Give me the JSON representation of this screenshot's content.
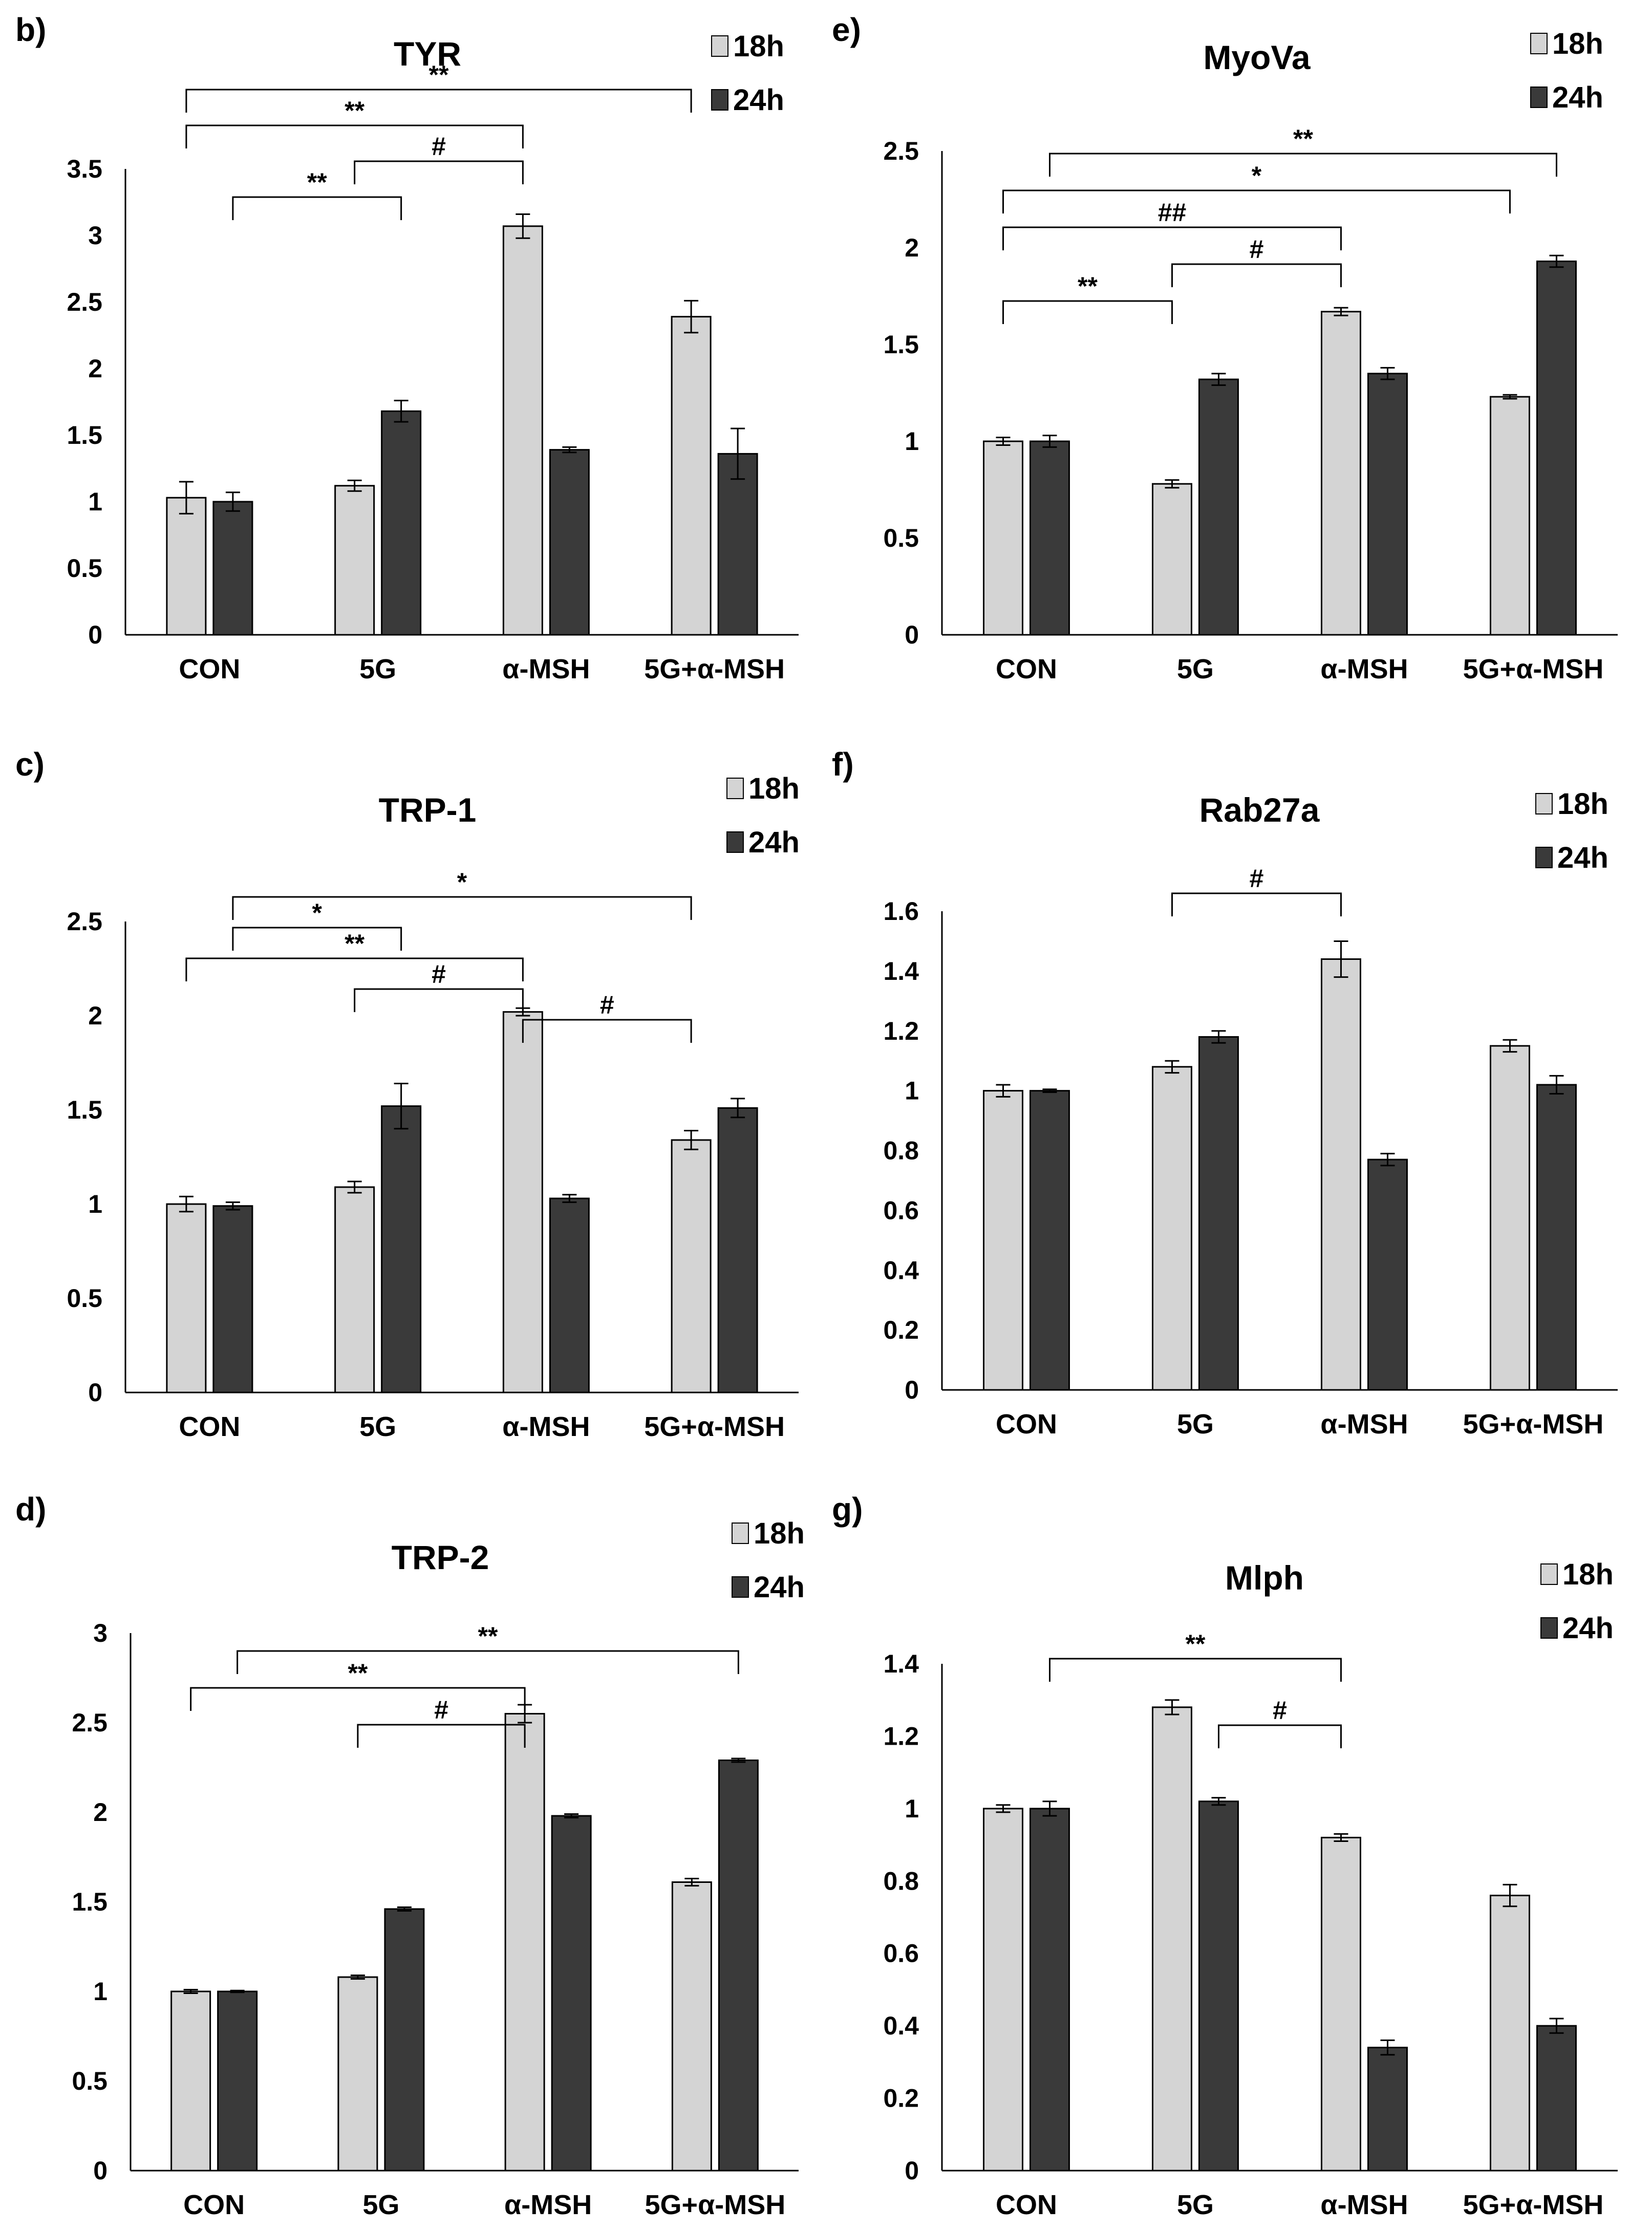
{
  "colors": {
    "series_18h": "#d4d4d4",
    "series_24h": "#3a3a3a",
    "outline": "#000000"
  },
  "chart_data": [
    {
      "panel_label": "b)",
      "title": "TYR",
      "type": "bar",
      "categories": [
        "CON",
        "5G",
        "α-MSH",
        "5G+α-MSH"
      ],
      "ylim": [
        0,
        3.5
      ],
      "ticks": [
        "0",
        "0.5",
        "1",
        "1.5",
        "2",
        "2.5",
        "3",
        "3.5"
      ],
      "legend_position": "top-right",
      "series": [
        {
          "name": "18h",
          "values": [
            1.03,
            1.12,
            3.07,
            2.39
          ],
          "errors": [
            0.12,
            0.04,
            0.09,
            0.12
          ]
        },
        {
          "name": "24h",
          "values": [
            1.0,
            1.68,
            1.39,
            1.36
          ],
          "errors": [
            0.07,
            0.08,
            0.02,
            0.19
          ]
        }
      ],
      "significance": [
        {
          "label": "**",
          "from": [
            0,
            0
          ],
          "to": [
            3,
            0
          ]
        },
        {
          "label": "**",
          "from": [
            0,
            0
          ],
          "to": [
            2,
            0
          ]
        },
        {
          "label": "#",
          "from": [
            1,
            0
          ],
          "to": [
            2,
            0
          ]
        },
        {
          "label": "**",
          "from": [
            0,
            0.5
          ],
          "to": [
            1,
            1
          ]
        }
      ]
    },
    {
      "panel_label": "e)",
      "title": "MyoVa",
      "type": "bar",
      "categories": [
        "CON",
        "5G",
        "α-MSH",
        "5G+α-MSH"
      ],
      "ylim": [
        0,
        2.5
      ],
      "ticks": [
        "0",
        "0.5",
        "1",
        "1.5",
        "2",
        "2.5"
      ],
      "legend_position": "top-right",
      "series": [
        {
          "name": "18h",
          "values": [
            1.0,
            0.78,
            1.67,
            1.23
          ],
          "errors": [
            0.02,
            0.02,
            0.02,
            0.01
          ]
        },
        {
          "name": "24h",
          "values": [
            1.0,
            1.32,
            1.35,
            1.93
          ],
          "errors": [
            0.03,
            0.03,
            0.03,
            0.03
          ]
        }
      ],
      "significance": [
        {
          "label": "**",
          "from": [
            0.5,
            0
          ],
          "to": [
            3,
            1
          ]
        },
        {
          "label": "*",
          "from": [
            0,
            0
          ],
          "to": [
            3,
            0
          ]
        },
        {
          "label": "##",
          "from": [
            0,
            0
          ],
          "to": [
            2,
            0
          ]
        },
        {
          "label": "#",
          "from": [
            1,
            0
          ],
          "to": [
            2,
            0
          ]
        },
        {
          "label": "**",
          "from": [
            0,
            0
          ],
          "to": [
            1,
            0
          ]
        }
      ]
    },
    {
      "panel_label": "c)",
      "title": "TRP-1",
      "type": "bar",
      "categories": [
        "CON",
        "5G",
        "α-MSH",
        "5G+α-MSH"
      ],
      "ylim": [
        0,
        2.5
      ],
      "ticks": [
        "0",
        "0.5",
        "1",
        "1.5",
        "2",
        "2.5"
      ],
      "legend_position": "top-right",
      "series": [
        {
          "name": "18h",
          "values": [
            1.0,
            1.09,
            2.02,
            1.34
          ],
          "errors": [
            0.04,
            0.03,
            0.02,
            0.05
          ]
        },
        {
          "name": "24h",
          "values": [
            0.99,
            1.52,
            1.03,
            1.51
          ],
          "errors": [
            0.02,
            0.12,
            0.02,
            0.05
          ]
        }
      ],
      "significance": [
        {
          "label": "*",
          "from": [
            0.5,
            0
          ],
          "to": [
            3,
            0
          ]
        },
        {
          "label": "*",
          "from": [
            0.5,
            0
          ],
          "to": [
            1,
            1
          ]
        },
        {
          "label": "**",
          "from": [
            0,
            0
          ],
          "to": [
            2,
            0
          ]
        },
        {
          "label": "#",
          "from": [
            1,
            0
          ],
          "to": [
            2,
            0
          ]
        },
        {
          "label": "#",
          "from": [
            2,
            0
          ],
          "to": [
            3,
            0
          ]
        }
      ]
    },
    {
      "panel_label": "f)",
      "title": "Rab27a",
      "type": "bar",
      "categories": [
        "CON",
        "5G",
        "α-MSH",
        "5G+α-MSH"
      ],
      "ylim": [
        0,
        1.6
      ],
      "ticks": [
        "0",
        "0.2",
        "0.4",
        "0.6",
        "0.8",
        "1",
        "1.2",
        "1.4",
        "1.6"
      ],
      "legend_position": "top-right",
      "series": [
        {
          "name": "18h",
          "values": [
            1.0,
            1.08,
            1.44,
            1.15
          ],
          "errors": [
            0.02,
            0.02,
            0.06,
            0.02
          ]
        },
        {
          "name": "24h",
          "values": [
            1.0,
            1.18,
            0.77,
            1.02
          ],
          "errors": [
            0.005,
            0.02,
            0.02,
            0.03
          ]
        }
      ],
      "significance": [
        {
          "label": "#",
          "from": [
            1,
            0
          ],
          "to": [
            2,
            0
          ]
        }
      ]
    },
    {
      "panel_label": "d)",
      "title": "TRP-2",
      "type": "bar",
      "categories": [
        "CON",
        "5G",
        "α-MSH",
        "5G+α-MSH"
      ],
      "ylim": [
        0,
        3
      ],
      "ticks": [
        "0",
        "0.5",
        "1",
        "1.5",
        "2",
        "2.5",
        "3"
      ],
      "legend_position": "top-right",
      "series": [
        {
          "name": "18h",
          "values": [
            1.0,
            1.08,
            2.55,
            1.61
          ],
          "errors": [
            0.01,
            0.01,
            0.05,
            0.02
          ]
        },
        {
          "name": "24h",
          "values": [
            1.0,
            1.46,
            1.98,
            2.29
          ],
          "errors": [
            0.005,
            0.01,
            0.01,
            0.01
          ]
        }
      ],
      "significance": [
        {
          "label": "**",
          "from": [
            0.5,
            0
          ],
          "to": [
            3,
            1
          ]
        },
        {
          "label": "**",
          "from": [
            0,
            0
          ],
          "to": [
            2,
            0
          ]
        },
        {
          "label": "#",
          "from": [
            1,
            0
          ],
          "to": [
            2,
            0
          ]
        }
      ]
    },
    {
      "panel_label": "g)",
      "title": "Mlph",
      "type": "bar",
      "categories": [
        "CON",
        "5G",
        "α-MSH",
        "5G+α-MSH"
      ],
      "ylim": [
        0,
        1.4
      ],
      "ticks": [
        "0",
        "0.2",
        "0.4",
        "0.6",
        "0.8",
        "1",
        "1.2",
        "1.4"
      ],
      "legend_position": "top-right",
      "series": [
        {
          "name": "18h",
          "values": [
            1.0,
            1.28,
            0.92,
            0.76
          ],
          "errors": [
            0.01,
            0.02,
            0.01,
            0.03
          ]
        },
        {
          "name": "24h",
          "values": [
            1.0,
            1.02,
            0.34,
            0.4
          ],
          "errors": [
            0.02,
            0.01,
            0.02,
            0.02
          ]
        }
      ],
      "significance": [
        {
          "label": "**",
          "from": [
            0.5,
            0
          ],
          "to": [
            2,
            0
          ]
        },
        {
          "label": "#",
          "from": [
            1,
            1
          ],
          "to": [
            2,
            0
          ]
        }
      ]
    }
  ]
}
